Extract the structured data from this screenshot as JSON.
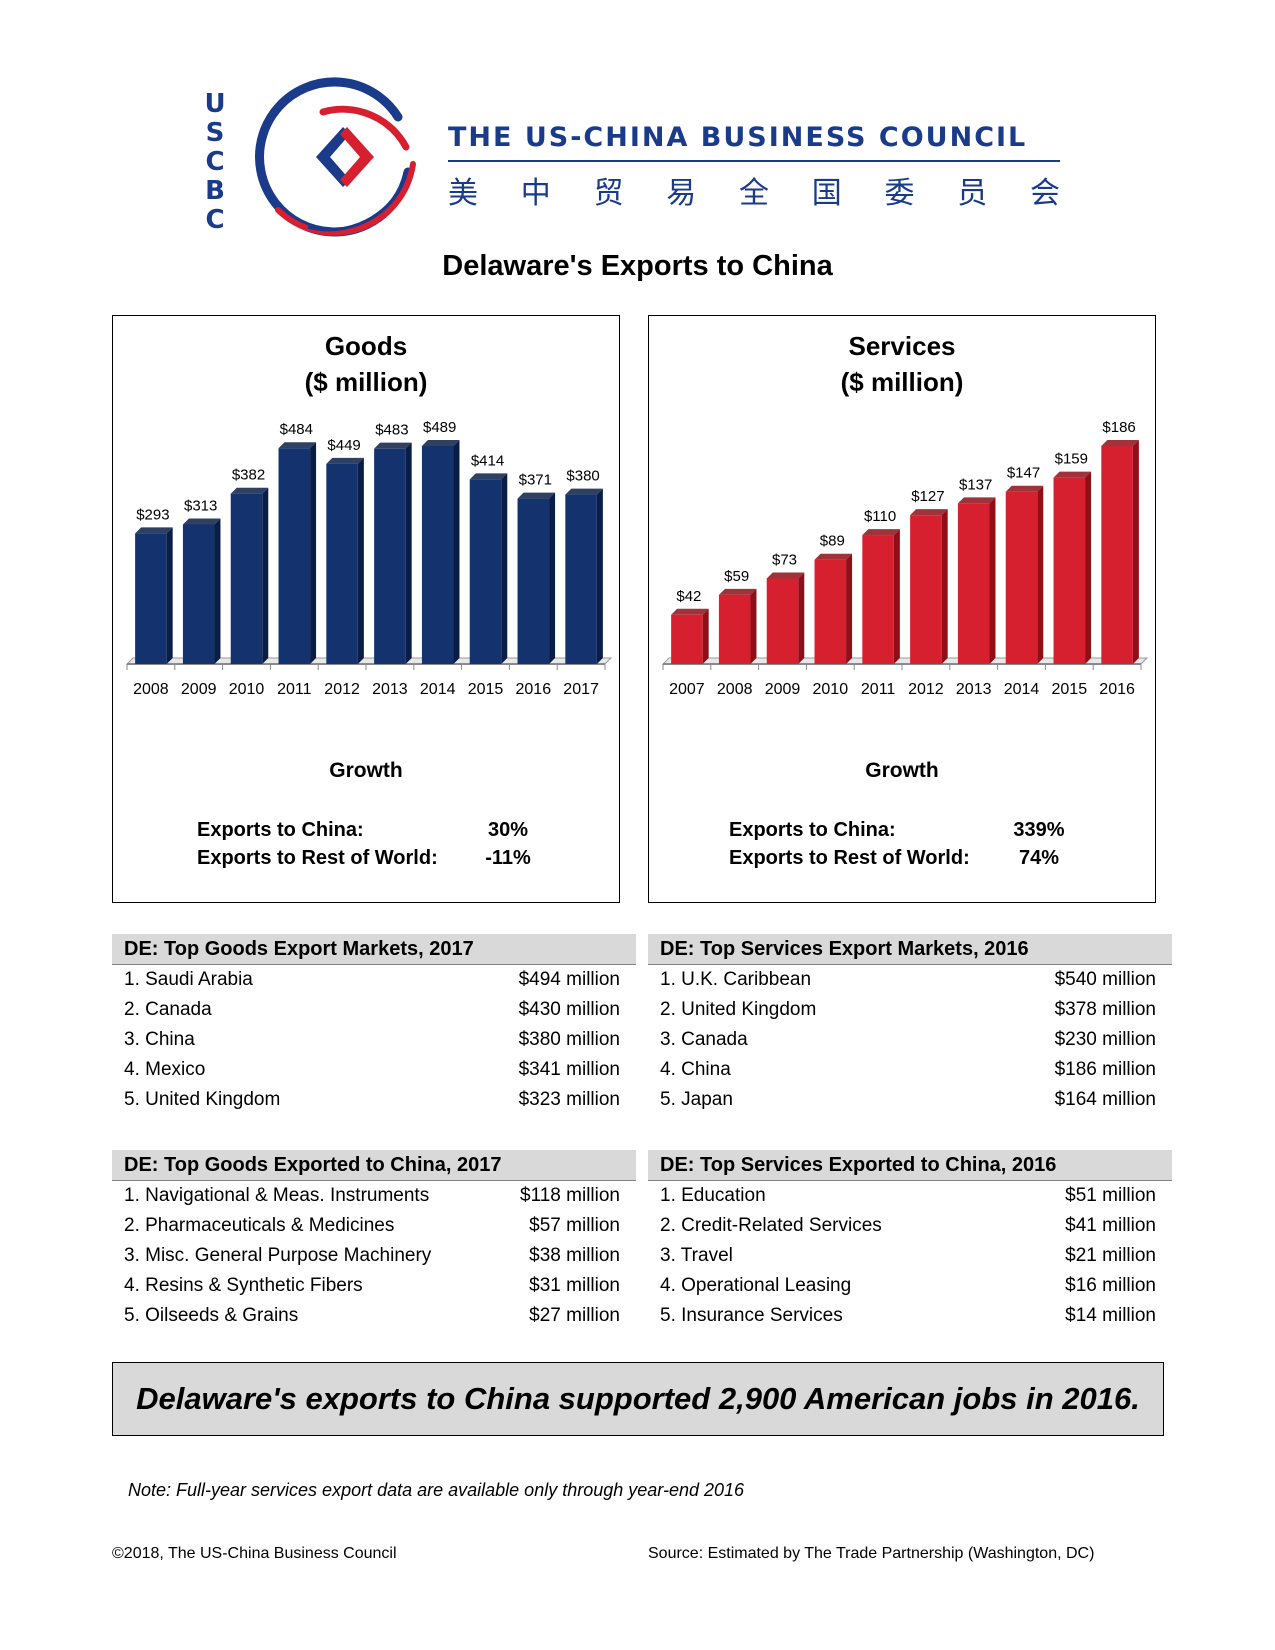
{
  "header": {
    "logo_letters": [
      "U",
      "S",
      "C",
      "B",
      "C"
    ],
    "org_name": "THE US-CHINA BUSINESS COUNCIL",
    "org_name_cn": [
      "美",
      "中",
      "贸",
      "易",
      "全",
      "国",
      "委",
      "员",
      "会"
    ],
    "colors": {
      "brand_blue": "#1a3a8a",
      "brand_red": "#d62030"
    }
  },
  "page_title": "Delaware's Exports to China",
  "goods": {
    "title_line1": "Goods",
    "title_line2": "($ million)",
    "growth_heading": "Growth",
    "growth_china_label": "Exports to China:",
    "growth_china_value": "30%",
    "growth_world_label": "Exports to Rest of World:",
    "growth_world_value": "-11%"
  },
  "services": {
    "title_line1": "Services",
    "title_line2": "($ million)",
    "growth_heading": "Growth",
    "growth_china_label": "Exports to China:",
    "growth_china_value": "339%",
    "growth_world_label": "Exports to Rest of World:",
    "growth_world_value": "74%"
  },
  "chart_data": [
    {
      "type": "bar",
      "title": "Goods ($ million)",
      "categories": [
        "2008",
        "2009",
        "2010",
        "2011",
        "2012",
        "2013",
        "2014",
        "2015",
        "2016",
        "2017"
      ],
      "values": [
        293,
        313,
        382,
        484,
        449,
        483,
        489,
        414,
        371,
        380
      ],
      "data_labels": [
        "$293",
        "$313",
        "$382",
        "$484",
        "$449",
        "$483",
        "$489",
        "$414",
        "$371",
        "$380"
      ],
      "ylim": [
        0,
        489
      ],
      "grid": false,
      "color": "#14336e",
      "side_color": "#0a1e45"
    },
    {
      "type": "bar",
      "title": "Services ($ million)",
      "categories": [
        "2007",
        "2008",
        "2009",
        "2010",
        "2011",
        "2012",
        "2013",
        "2014",
        "2015",
        "2016"
      ],
      "values": [
        42,
        59,
        73,
        89,
        110,
        127,
        137,
        147,
        159,
        186
      ],
      "data_labels": [
        "$42",
        "$59",
        "$73",
        "$89",
        "$110",
        "$127",
        "$137",
        "$147",
        "$159",
        "$186"
      ],
      "ylim": [
        0,
        186
      ],
      "grid": false,
      "color": "#d62030",
      "side_color": "#8e0f18"
    }
  ],
  "tables": {
    "goods_markets": {
      "title": "DE: Top Goods Export Markets, 2017",
      "rows": [
        {
          "name": "1. Saudi Arabia",
          "value": "$494 million"
        },
        {
          "name": "2. Canada",
          "value": "$430 million"
        },
        {
          "name": "3. China",
          "value": "$380 million"
        },
        {
          "name": "4. Mexico",
          "value": "$341 million"
        },
        {
          "name": "5. United Kingdom",
          "value": "$323 million"
        }
      ]
    },
    "services_markets": {
      "title": "DE: Top Services Export Markets, 2016",
      "rows": [
        {
          "name": "1. U.K. Caribbean",
          "value": "$540 million"
        },
        {
          "name": "2. United Kingdom",
          "value": "$378 million"
        },
        {
          "name": "3. Canada",
          "value": "$230 million"
        },
        {
          "name": "4. China",
          "value": "$186 million"
        },
        {
          "name": "5. Japan",
          "value": "$164 million"
        }
      ]
    },
    "goods_china": {
      "title": "DE: Top Goods Exported to China, 2017",
      "rows": [
        {
          "name": "1. Navigational & Meas. Instruments",
          "value": "$118 million"
        },
        {
          "name": "2. Pharmaceuticals & Medicines",
          "value": "$57 million"
        },
        {
          "name": "3. Misc. General Purpose Machinery",
          "value": "$38 million"
        },
        {
          "name": "4. Resins & Synthetic Fibers",
          "value": "$31 million"
        },
        {
          "name": "5. Oilseeds & Grains",
          "value": "$27 million"
        }
      ]
    },
    "services_china": {
      "title": "DE: Top Services Exported to China, 2016",
      "rows": [
        {
          "name": "1. Education",
          "value": "$51 million"
        },
        {
          "name": "2. Credit-Related Services",
          "value": "$41 million"
        },
        {
          "name": "3. Travel",
          "value": "$21 million"
        },
        {
          "name": "4. Operational Leasing",
          "value": "$16 million"
        },
        {
          "name": "5. Insurance Services",
          "value": "$14 million"
        }
      ]
    }
  },
  "jobs_statement": "Delaware's exports to China supported 2,900 American jobs in 2016.",
  "note": "Note: Full-year services export data are available only through year-end 2016",
  "footer": {
    "copyright": "©2018, The US-China Business Council",
    "source": "Source: Estimated by The Trade Partnership (Washington, DC)"
  }
}
